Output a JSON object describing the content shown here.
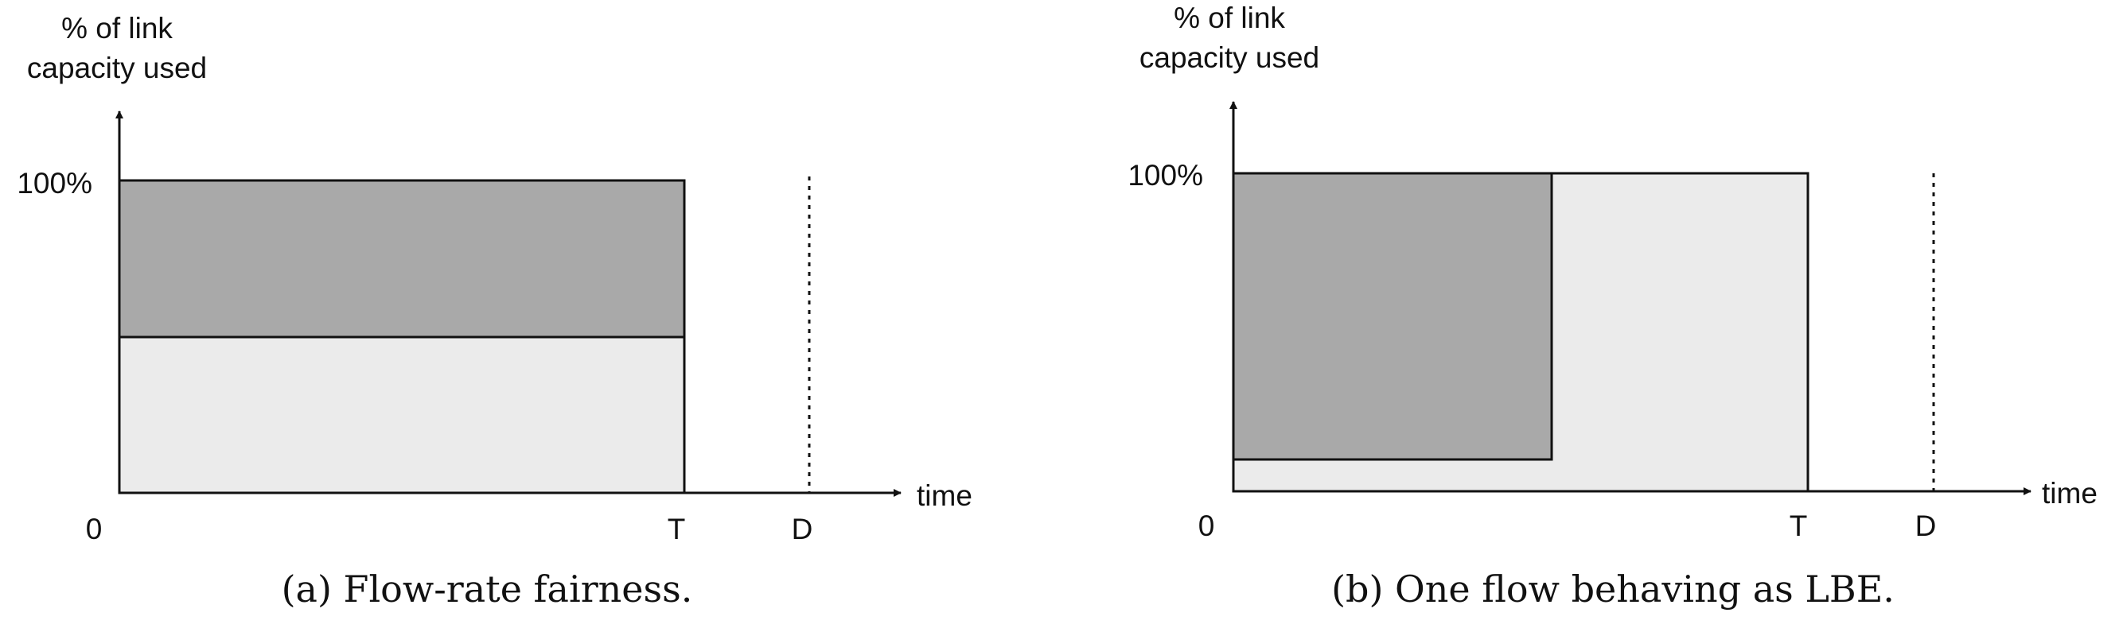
{
  "panels": [
    {
      "ylabel_line1": "% of link",
      "ylabel_line2": "capacity used",
      "y100_label": "100%",
      "origin_label": "0",
      "t_label": "T",
      "d_label": "D",
      "xlabel": "time",
      "caption": "(a) Flow-rate fairness."
    },
    {
      "ylabel_line1": "% of link",
      "ylabel_line2": "capacity used",
      "y100_label": "100%",
      "origin_label": "0",
      "t_label": "T",
      "d_label": "D",
      "xlabel": "time",
      "caption": "(b) One flow behaving as LBE."
    }
  ],
  "colors": {
    "dark_fill": "#a9a9a9",
    "light_fill": "#ebebeb",
    "stroke": "#111111"
  }
}
